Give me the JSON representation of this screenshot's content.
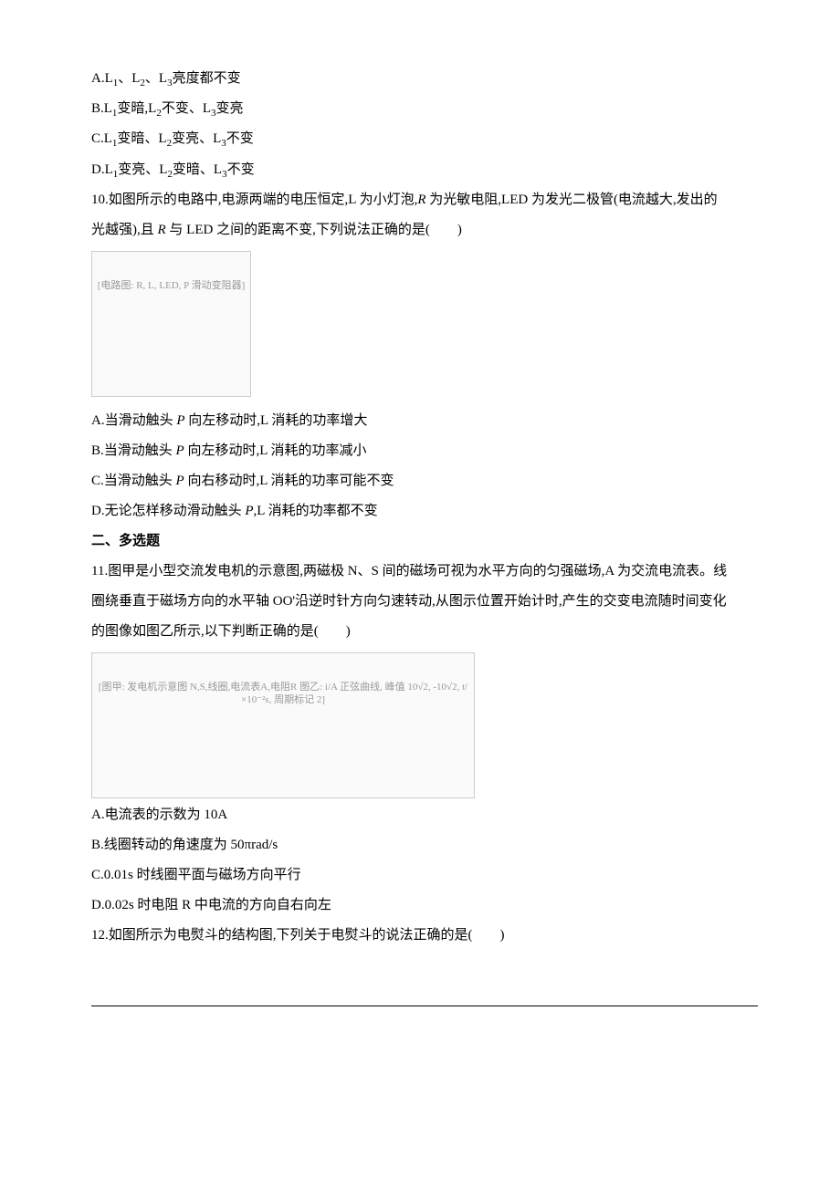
{
  "q9": {
    "optA_pre": "A.L",
    "optA_post": "亮度都不变",
    "optB_pre": "B.L",
    "optB_mid1": "变暗,L",
    "optB_mid2": "不变、L",
    "optB_post": "变亮",
    "optC_pre": "C.L",
    "optC_mid1": "变暗、L",
    "optC_mid2": "变亮、L",
    "optC_post": "不变",
    "optD_pre": "D.L",
    "optD_mid1": "变亮、L",
    "optD_mid2": "变暗、L",
    "optD_post": "不变",
    "sub1": "1",
    "sub2": "2",
    "sub3": "3",
    "sep12": "、L",
    "sep23": "、L"
  },
  "q10": {
    "stem1a": "10.如图所示的电路中,电源两端的电压恒定,L 为小灯泡,",
    "stem1b": "为光敏电阻,LED 为发光二极管(电流越大,发出的",
    "stem2a": "光越强),且 ",
    "stem2b": " 与 LED 之间的距离不变,下列说法正确的是(　　)",
    "R": "R",
    "img_alt": "[电路图: R, L, LED, P 滑动变阻器]",
    "optA_a": "A.当滑动触头 ",
    "optA_b": " 向左移动时,L 消耗的功率增大",
    "optB_a": "B.当滑动触头 ",
    "optB_b": " 向左移动时,L 消耗的功率减小",
    "optC_a": "C.当滑动触头 ",
    "optC_b": " 向右移动时,L 消耗的功率可能不变",
    "optD_a": "D.无论怎样移动滑动触头 ",
    "optD_b": ",L 消耗的功率都不变",
    "P": "P"
  },
  "section2": "二、多选题",
  "q11": {
    "stem1": "11.图甲是小型交流发电机的示意图,两磁极 N、S 间的磁场可视为水平方向的匀强磁场,A 为交流电流表。线",
    "stem2": "圈绕垂直于磁场方向的水平轴 OO'沿逆时针方向匀速转动,从图示位置开始计时,产生的交变电流随时间变化",
    "stem3": "的图像如图乙所示,以下判断正确的是(　　)",
    "img_alt": "[图甲: 发电机示意图 N,S,线圈,电流表A,电阻R  图乙: i/A 正弦曲线, 峰值 10√2, -10√2, t/×10⁻²s, 周期标记 2]",
    "optA": "A.电流表的示数为 10A",
    "optB": "B.线圈转动的角速度为 50πrad/s",
    "optC": "C.0.01s 时线圈平面与磁场方向平行",
    "optD": "D.0.02s 时电阻 R 中电流的方向自右向左"
  },
  "q12": {
    "stem": "12.如图所示为电熨斗的结构图,下列关于电熨斗的说法正确的是(　　)"
  }
}
